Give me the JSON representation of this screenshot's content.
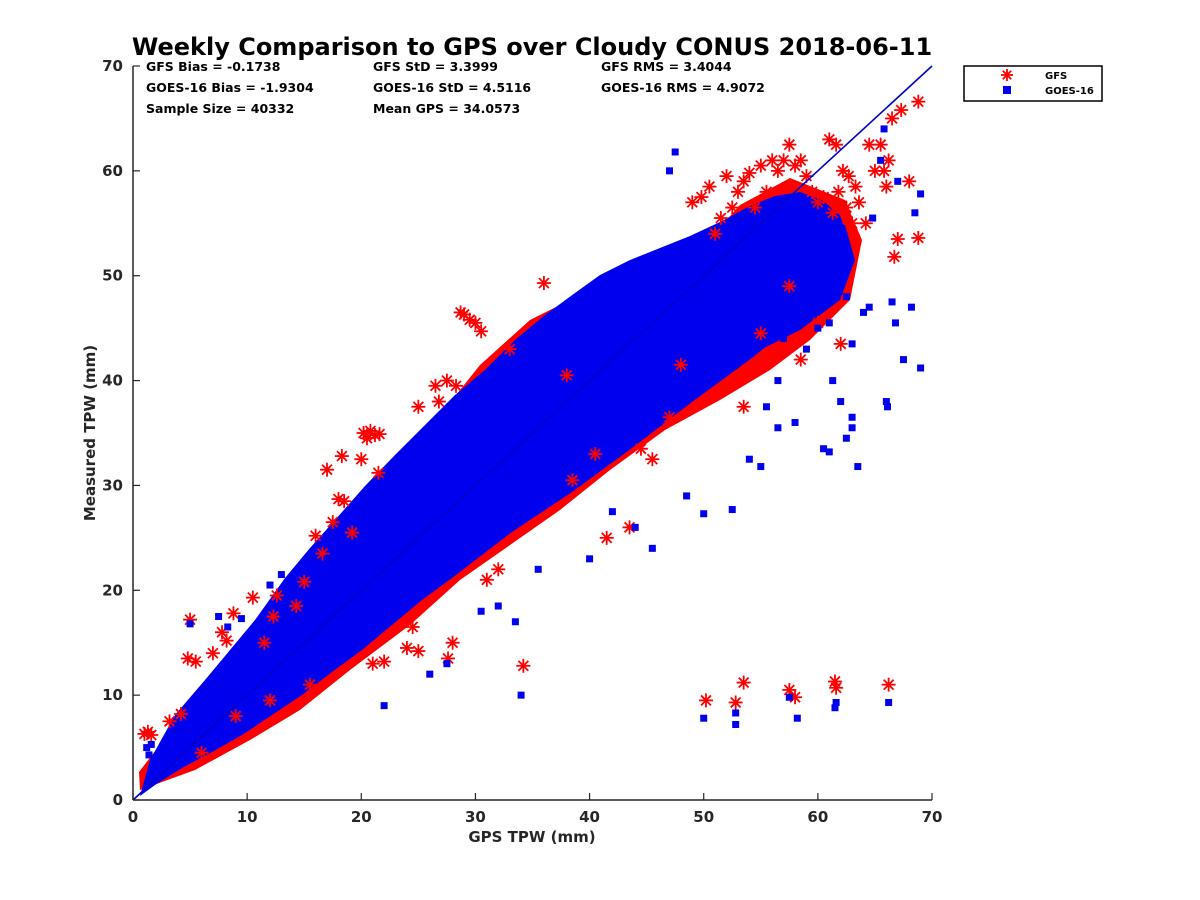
{
  "chart_data": {
    "type": "scatter",
    "title": "Weekly Comparison to GPS over Cloudy CONUS 2018-06-11",
    "xlabel": "GPS TPW (mm)",
    "ylabel": "Measured TPW (mm)",
    "xlim": [
      0,
      70
    ],
    "ylim": [
      0,
      70
    ],
    "xticks": [
      "0",
      "10",
      "20",
      "30",
      "40",
      "50",
      "60",
      "70"
    ],
    "yticks": [
      "0",
      "10",
      "20",
      "30",
      "40",
      "50",
      "60",
      "70"
    ],
    "grid": false,
    "legend_position": "outside-top-right",
    "reference_line": {
      "from": [
        0,
        0
      ],
      "to": [
        70,
        70
      ],
      "color": "#0000cc"
    },
    "stats": [
      [
        "GFS Bias = -0.1738",
        "GFS StD = 3.3999",
        "GFS RMS = 3.4044"
      ],
      [
        "GOES-16 Bias = -1.9304",
        "GOES-16 StD = 4.5116",
        "GOES-16 RMS = 4.9072"
      ],
      [
        "Sample Size = 40332",
        "Mean GPS = 34.0573"
      ]
    ],
    "series": [
      {
        "name": "GFS",
        "marker": "asterisk",
        "color": "#ff0000",
        "points": [
          [
            1.0,
            6.3
          ],
          [
            1.3,
            6.5
          ],
          [
            1.6,
            6.2
          ],
          [
            3.2,
            7.5
          ],
          [
            4.2,
            8.2
          ],
          [
            4.8,
            13.5
          ],
          [
            5.0,
            17.2
          ],
          [
            5.5,
            13.2
          ],
          [
            6.0,
            4.5
          ],
          [
            7.0,
            14.0
          ],
          [
            7.8,
            16.0
          ],
          [
            8.2,
            15.2
          ],
          [
            8.8,
            17.8
          ],
          [
            10.5,
            19.3
          ],
          [
            11.5,
            15.0
          ],
          [
            12.3,
            17.5
          ],
          [
            12.6,
            19.5
          ],
          [
            14.3,
            18.5
          ],
          [
            15.0,
            20.8
          ],
          [
            16.0,
            25.2
          ],
          [
            16.6,
            23.5
          ],
          [
            17.0,
            31.5
          ],
          [
            17.5,
            26.5
          ],
          [
            18.0,
            28.7
          ],
          [
            18.3,
            32.8
          ],
          [
            18.5,
            28.5
          ],
          [
            19.2,
            25.5
          ],
          [
            20.0,
            32.5
          ],
          [
            20.2,
            35.0
          ],
          [
            20.5,
            34.5
          ],
          [
            20.8,
            35.2
          ],
          [
            21.2,
            34.8
          ],
          [
            21.5,
            31.2
          ],
          [
            21.6,
            34.9
          ],
          [
            21.0,
            13.0
          ],
          [
            22.0,
            13.2
          ],
          [
            24.0,
            14.5
          ],
          [
            25.0,
            14.2
          ],
          [
            24.5,
            16.5
          ],
          [
            25.0,
            37.5
          ],
          [
            26.5,
            39.5
          ],
          [
            26.8,
            38.0
          ],
          [
            27.5,
            40.0
          ],
          [
            27.6,
            13.5
          ],
          [
            28.0,
            15.0
          ],
          [
            28.3,
            39.5
          ],
          [
            28.7,
            46.5
          ],
          [
            29.0,
            46.3
          ],
          [
            29.5,
            45.8
          ],
          [
            30.0,
            45.5
          ],
          [
            30.5,
            44.7
          ],
          [
            31.0,
            21.0
          ],
          [
            32.0,
            22.0
          ],
          [
            33.0,
            43.0
          ],
          [
            34.2,
            12.8
          ],
          [
            36.0,
            49.3
          ],
          [
            38.0,
            40.5
          ],
          [
            40.5,
            33.0
          ],
          [
            41.5,
            25.0
          ],
          [
            43.5,
            26.0
          ],
          [
            44.5,
            33.5
          ],
          [
            45.5,
            32.5
          ],
          [
            47.0,
            36.5
          ],
          [
            48.0,
            41.5
          ],
          [
            49.0,
            57.0
          ],
          [
            49.8,
            57.5
          ],
          [
            50.5,
            58.5
          ],
          [
            51.0,
            54.0
          ],
          [
            51.5,
            55.5
          ],
          [
            52.0,
            59.5
          ],
          [
            52.5,
            56.5
          ],
          [
            53.0,
            58.0
          ],
          [
            53.5,
            59.0
          ],
          [
            54.0,
            59.8
          ],
          [
            54.5,
            56.5
          ],
          [
            55.0,
            60.5
          ],
          [
            55.5,
            58.0
          ],
          [
            56.0,
            61.0
          ],
          [
            56.5,
            60.0
          ],
          [
            57.0,
            61.0
          ],
          [
            57.5,
            62.5
          ],
          [
            58.0,
            60.5
          ],
          [
            58.5,
            61.0
          ],
          [
            59.0,
            59.5
          ],
          [
            59.5,
            58.0
          ],
          [
            60.0,
            57.0
          ],
          [
            60.5,
            57.5
          ],
          [
            61.0,
            63.0
          ],
          [
            61.3,
            56.0
          ],
          [
            61.6,
            62.5
          ],
          [
            61.8,
            58.0
          ],
          [
            62.2,
            60.0
          ],
          [
            62.5,
            56.5
          ],
          [
            62.7,
            59.5
          ],
          [
            63.0,
            55.0
          ],
          [
            63.3,
            58.5
          ],
          [
            63.6,
            57.0
          ],
          [
            64.2,
            55.0
          ],
          [
            64.5,
            62.5
          ],
          [
            65.0,
            60.0
          ],
          [
            65.5,
            62.5
          ],
          [
            65.8,
            60.0
          ],
          [
            66.0,
            58.5
          ],
          [
            66.2,
            61.0
          ],
          [
            66.5,
            65.0
          ],
          [
            66.7,
            51.8
          ],
          [
            67.0,
            53.5
          ],
          [
            67.3,
            65.8
          ],
          [
            68.0,
            59.0
          ],
          [
            68.8,
            66.6
          ],
          [
            68.8,
            53.6
          ],
          [
            57.5,
            49.0
          ],
          [
            58.5,
            42.0
          ],
          [
            60.0,
            45.5
          ],
          [
            62.0,
            43.5
          ],
          [
            53.5,
            37.5
          ],
          [
            55.0,
            44.5
          ],
          [
            50.2,
            9.5
          ],
          [
            52.8,
            9.3
          ],
          [
            53.5,
            11.2
          ],
          [
            57.5,
            10.5
          ],
          [
            58.0,
            9.8
          ],
          [
            61.5,
            11.3
          ],
          [
            61.6,
            10.7
          ],
          [
            66.2,
            11.0
          ],
          [
            38.5,
            30.5
          ],
          [
            15.5,
            11.0
          ],
          [
            12.0,
            9.5
          ],
          [
            9.0,
            8.0
          ]
        ]
      },
      {
        "name": "GOES-16",
        "marker": "square",
        "color": "#0000ee",
        "points": [
          [
            1.2,
            5.0
          ],
          [
            1.4,
            4.3
          ],
          [
            1.6,
            5.3
          ],
          [
            3.0,
            3.8
          ],
          [
            3.5,
            4.5
          ],
          [
            3.8,
            6.0
          ],
          [
            4.2,
            7.0
          ],
          [
            5.0,
            16.8
          ],
          [
            7.5,
            17.5
          ],
          [
            8.3,
            16.5
          ],
          [
            9.5,
            17.3
          ],
          [
            12.0,
            20.5
          ],
          [
            13.0,
            21.5
          ],
          [
            16.0,
            22.5
          ],
          [
            17.0,
            23.0
          ],
          [
            22.0,
            9.0
          ],
          [
            26.0,
            12.0
          ],
          [
            27.5,
            13.0
          ],
          [
            30.5,
            18.0
          ],
          [
            32.0,
            18.5
          ],
          [
            34.0,
            10.0
          ],
          [
            35.5,
            22.0
          ],
          [
            33.5,
            17.0
          ],
          [
            40.0,
            23.0
          ],
          [
            45.5,
            24.0
          ],
          [
            48.5,
            29.0
          ],
          [
            50.0,
            27.3
          ],
          [
            52.5,
            27.7
          ],
          [
            47.0,
            60.0
          ],
          [
            47.5,
            61.8
          ],
          [
            55.5,
            37.5
          ],
          [
            56.5,
            35.5
          ],
          [
            58.0,
            36.0
          ],
          [
            59.0,
            43.0
          ],
          [
            60.0,
            45.0
          ],
          [
            60.5,
            33.5
          ],
          [
            61.0,
            33.2
          ],
          [
            61.3,
            40.0
          ],
          [
            62.0,
            38.0
          ],
          [
            62.5,
            34.5
          ],
          [
            63.0,
            35.5
          ],
          [
            63.5,
            31.8
          ],
          [
            63.0,
            36.5
          ],
          [
            61.0,
            45.5
          ],
          [
            62.5,
            48.0
          ],
          [
            63.0,
            43.5
          ],
          [
            64.0,
            46.5
          ],
          [
            64.5,
            47.0
          ],
          [
            64.8,
            55.5
          ],
          [
            65.5,
            61.0
          ],
          [
            65.8,
            64.0
          ],
          [
            66.0,
            38.0
          ],
          [
            66.1,
            37.5
          ],
          [
            66.5,
            47.5
          ],
          [
            66.8,
            45.5
          ],
          [
            67.0,
            59.0
          ],
          [
            67.5,
            42.0
          ],
          [
            68.2,
            47.0
          ],
          [
            68.5,
            56.0
          ],
          [
            69.0,
            57.8
          ],
          [
            69.0,
            41.2
          ],
          [
            50.0,
            7.8
          ],
          [
            52.8,
            7.2
          ],
          [
            52.8,
            8.3
          ],
          [
            57.5,
            9.8
          ],
          [
            58.2,
            7.8
          ],
          [
            61.5,
            8.8
          ],
          [
            61.6,
            9.3
          ],
          [
            66.2,
            9.3
          ],
          [
            54.0,
            32.5
          ],
          [
            55.0,
            31.8
          ],
          [
            56.5,
            40.0
          ],
          [
            53.0,
            45.0
          ],
          [
            44.0,
            26.0
          ],
          [
            42.0,
            27.5
          ],
          [
            57.0,
            44.0
          ]
        ]
      }
    ]
  }
}
